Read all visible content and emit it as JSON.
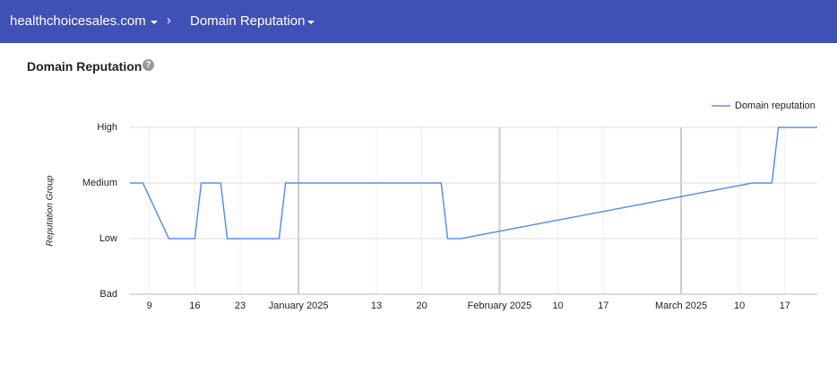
{
  "header": {
    "domain": "healthchoicesales.com",
    "page": "Domain Reputation"
  },
  "section_title": "Domain Reputation",
  "chart_data": {
    "type": "line",
    "y_label": "Reputation Group",
    "legend": "top-right",
    "grid": true,
    "x": [
      "2024-12-06",
      "2024-12-08",
      "2024-12-12",
      "2024-12-16",
      "2024-12-17",
      "2024-12-20",
      "2024-12-21",
      "2024-12-29",
      "2024-12-30",
      "2025-01-23",
      "2025-01-24",
      "2025-01-26",
      "2025-03-12",
      "2025-03-15",
      "2025-03-16",
      "2025-03-22"
    ],
    "series": [
      {
        "name": "Domain reputation",
        "color": "#5b8ff0",
        "values": [
          2,
          2,
          1,
          1,
          2,
          2,
          1,
          1,
          2,
          2,
          1,
          1,
          2,
          2,
          3,
          3
        ]
      }
    ],
    "xlim": [
      "2024-12-06",
      "2025-03-22"
    ],
    "xticks": [
      {
        "value": "2024-12-09",
        "label": "9"
      },
      {
        "value": "2024-12-16",
        "label": "16"
      },
      {
        "value": "2024-12-23",
        "label": "23"
      },
      {
        "value": "2025-01-01",
        "label": "January 2025"
      },
      {
        "value": "2025-01-13",
        "label": "13"
      },
      {
        "value": "2025-01-20",
        "label": "20"
      },
      {
        "value": "2025-02-01",
        "label": "February 2025"
      },
      {
        "value": "2025-02-10",
        "label": "10"
      },
      {
        "value": "2025-02-17",
        "label": "17"
      },
      {
        "value": "2025-03-01",
        "label": "March 2025"
      },
      {
        "value": "2025-03-10",
        "label": "10"
      },
      {
        "value": "2025-03-17",
        "label": "17"
      }
    ],
    "ylim": [
      0,
      3
    ],
    "yticks": [
      {
        "value": 0,
        "label": "Bad"
      },
      {
        "value": 1,
        "label": "Low"
      },
      {
        "value": 2,
        "label": "Medium"
      },
      {
        "value": 3,
        "label": "High"
      }
    ]
  }
}
